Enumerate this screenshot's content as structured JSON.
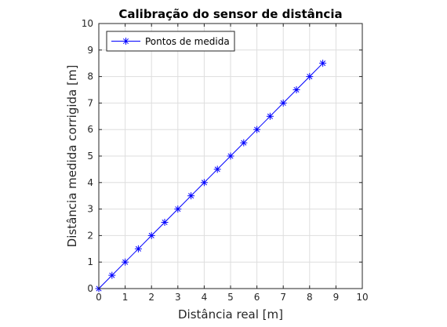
{
  "chart_data": {
    "type": "line",
    "title": "Calibração do sensor de distância",
    "xlabel": "Distância real [m]",
    "ylabel": "Distância medida corrigida [m]",
    "xlim": [
      0,
      10
    ],
    "ylim": [
      0,
      10
    ],
    "xticks": [
      "0",
      "1",
      "2",
      "3",
      "4",
      "5",
      "6",
      "7",
      "8",
      "9",
      "10"
    ],
    "yticks": [
      "0",
      "1",
      "2",
      "3",
      "4",
      "5",
      "6",
      "7",
      "8",
      "9",
      "10"
    ],
    "grid": true,
    "legend": {
      "position": "top-left"
    },
    "series": [
      {
        "name": "Pontos de medida",
        "color": "#0000ff",
        "marker": "asterisk",
        "x": [
          0,
          0.5,
          1,
          1.5,
          2,
          2.5,
          3,
          3.5,
          4,
          4.5,
          5,
          5.5,
          6,
          6.5,
          7,
          7.5,
          8,
          8.5
        ],
        "y": [
          0,
          0.5,
          1,
          1.5,
          2,
          2.5,
          3,
          3.5,
          4,
          4.5,
          5,
          5.5,
          6,
          6.5,
          7,
          7.5,
          8,
          8.5
        ]
      }
    ]
  }
}
